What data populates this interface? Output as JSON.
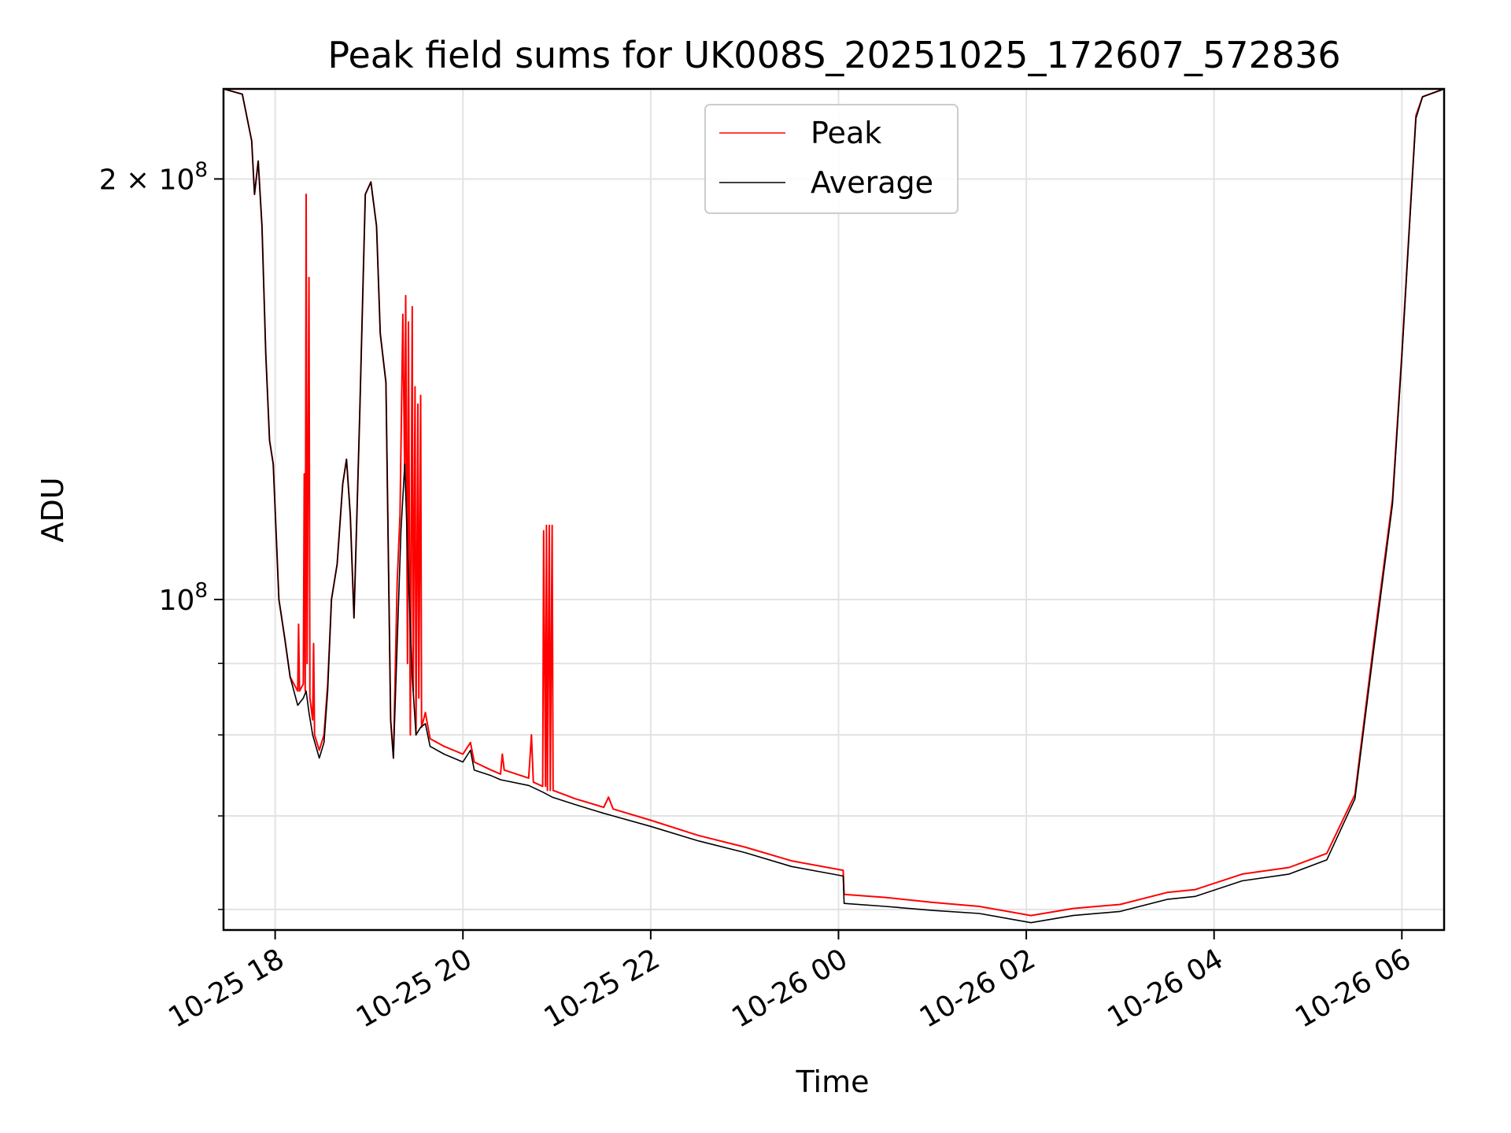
{
  "chart_data": {
    "type": "line",
    "title": "Peak field sums for UK008S_20251025_172607_572836",
    "xlabel": "Time",
    "ylabel": "ADU",
    "yscale": "log",
    "xlim_hours": [
      -0.55,
      12.45
    ],
    "ylim": [
      58000000,
      232000000
    ],
    "grid": true,
    "legend_position": "upper center",
    "x_ticks": [
      {
        "hours": 0,
        "label": "10-25 18"
      },
      {
        "hours": 2,
        "label": "10-25 20"
      },
      {
        "hours": 4,
        "label": "10-25 22"
      },
      {
        "hours": 6,
        "label": "10-26 00"
      },
      {
        "hours": 8,
        "label": "10-26 02"
      },
      {
        "hours": 10,
        "label": "10-26 04"
      },
      {
        "hours": 12,
        "label": "10-26 06"
      }
    ],
    "y_major_ticks": [
      {
        "value": 100000000,
        "base": "10",
        "exp": "8",
        "mult": ""
      },
      {
        "value": 200000000,
        "base": "10",
        "exp": "8",
        "mult": "2 × "
      }
    ],
    "y_minor_ticks": [
      60000000,
      70000000,
      80000000,
      90000000
    ],
    "series": [
      {
        "name": "Peak",
        "color": "#ff0000",
        "points": [
          [
            -0.55,
            232000000
          ],
          [
            -0.35,
            230000000
          ],
          [
            -0.25,
            213000000
          ],
          [
            -0.22,
            195000000
          ],
          [
            -0.18,
            206000000
          ],
          [
            -0.14,
            185000000
          ],
          [
            -0.1,
            150000000
          ],
          [
            -0.06,
            130000000
          ],
          [
            -0.02,
            125000000
          ],
          [
            0.04,
            100000000
          ],
          [
            0.1,
            94000000
          ],
          [
            0.16,
            88000000
          ],
          [
            0.24,
            86000000
          ],
          [
            0.25,
            96000000
          ],
          [
            0.26,
            86000000
          ],
          [
            0.3,
            87000000
          ],
          [
            0.31,
            123000000
          ],
          [
            0.32,
            86000000
          ],
          [
            0.33,
            195000000
          ],
          [
            0.34,
            90000000
          ],
          [
            0.36,
            170000000
          ],
          [
            0.37,
            85000000
          ],
          [
            0.4,
            82000000
          ],
          [
            0.41,
            93000000
          ],
          [
            0.42,
            80000000
          ],
          [
            0.47,
            78000000
          ],
          [
            0.52,
            80000000
          ],
          [
            0.56,
            87000000
          ],
          [
            0.6,
            100000000
          ],
          [
            0.66,
            106000000
          ],
          [
            0.72,
            121000000
          ],
          [
            0.76,
            126000000
          ],
          [
            0.8,
            115000000
          ],
          [
            0.84,
            97000000
          ],
          [
            0.9,
            135000000
          ],
          [
            0.96,
            195000000
          ],
          [
            1.02,
            199000000
          ],
          [
            1.08,
            185000000
          ],
          [
            1.12,
            155000000
          ],
          [
            1.18,
            143000000
          ],
          [
            1.23,
            82000000
          ],
          [
            1.26,
            77000000
          ],
          [
            1.3,
            103000000
          ],
          [
            1.33,
            115000000
          ],
          [
            1.36,
            160000000
          ],
          [
            1.38,
            122000000
          ],
          [
            1.39,
            165000000
          ],
          [
            1.41,
            90000000
          ],
          [
            1.42,
            158000000
          ],
          [
            1.44,
            80000000
          ],
          [
            1.46,
            162000000
          ],
          [
            1.47,
            86000000
          ],
          [
            1.49,
            142000000
          ],
          [
            1.5,
            80000000
          ],
          [
            1.52,
            138000000
          ],
          [
            1.53,
            85000000
          ],
          [
            1.55,
            140000000
          ],
          [
            1.56,
            81000000
          ],
          [
            1.6,
            83000000
          ],
          [
            1.65,
            79500000
          ],
          [
            1.8,
            78500000
          ],
          [
            2.0,
            77500000
          ],
          [
            2.08,
            79000000
          ],
          [
            2.12,
            76500000
          ],
          [
            2.3,
            75500000
          ],
          [
            2.4,
            75000000
          ],
          [
            2.42,
            77500000
          ],
          [
            2.44,
            75500000
          ],
          [
            2.7,
            74500000
          ],
          [
            2.73,
            80000000
          ],
          [
            2.75,
            74000000
          ],
          [
            2.85,
            73500000
          ],
          [
            2.86,
            112000000
          ],
          [
            2.88,
            73500000
          ],
          [
            2.89,
            113000000
          ],
          [
            2.9,
            73000000
          ],
          [
            2.92,
            113000000
          ],
          [
            2.93,
            73000000
          ],
          [
            2.95,
            113000000
          ],
          [
            2.96,
            73000000
          ],
          [
            3.2,
            72000000
          ],
          [
            3.5,
            71000000
          ],
          [
            3.55,
            72200000
          ],
          [
            3.6,
            70800000
          ],
          [
            4.0,
            69500000
          ],
          [
            4.5,
            67800000
          ],
          [
            5.0,
            66500000
          ],
          [
            5.5,
            65000000
          ],
          [
            6.05,
            64000000
          ],
          [
            6.06,
            61500000
          ],
          [
            6.5,
            61200000
          ],
          [
            7.0,
            60700000
          ],
          [
            7.5,
            60300000
          ],
          [
            8.05,
            59400000
          ],
          [
            8.5,
            60100000
          ],
          [
            9.0,
            60500000
          ],
          [
            9.5,
            61700000
          ],
          [
            9.8,
            62000000
          ],
          [
            10.3,
            63600000
          ],
          [
            10.8,
            64300000
          ],
          [
            11.2,
            65800000
          ],
          [
            11.5,
            72500000
          ],
          [
            11.7,
            93000000
          ],
          [
            11.9,
            118000000
          ],
          [
            12.0,
            150000000
          ],
          [
            12.1,
            195000000
          ],
          [
            12.15,
            222000000
          ],
          [
            12.22,
            229000000
          ],
          [
            12.45,
            232000000
          ]
        ]
      },
      {
        "name": "Average",
        "color": "#000000",
        "points": [
          [
            -0.55,
            232000000
          ],
          [
            -0.35,
            230000000
          ],
          [
            -0.25,
            213000000
          ],
          [
            -0.22,
            195000000
          ],
          [
            -0.18,
            206000000
          ],
          [
            -0.14,
            185000000
          ],
          [
            -0.1,
            150000000
          ],
          [
            -0.06,
            130000000
          ],
          [
            -0.02,
            125000000
          ],
          [
            0.04,
            100000000
          ],
          [
            0.1,
            94000000
          ],
          [
            0.16,
            88000000
          ],
          [
            0.24,
            84000000
          ],
          [
            0.3,
            85000000
          ],
          [
            0.33,
            86000000
          ],
          [
            0.36,
            83000000
          ],
          [
            0.4,
            80000000
          ],
          [
            0.47,
            77000000
          ],
          [
            0.52,
            79000000
          ],
          [
            0.56,
            86000000
          ],
          [
            0.6,
            100000000
          ],
          [
            0.66,
            106000000
          ],
          [
            0.72,
            121000000
          ],
          [
            0.76,
            126000000
          ],
          [
            0.8,
            115000000
          ],
          [
            0.84,
            97000000
          ],
          [
            0.9,
            135000000
          ],
          [
            0.96,
            195000000
          ],
          [
            1.02,
            199000000
          ],
          [
            1.08,
            185000000
          ],
          [
            1.12,
            155000000
          ],
          [
            1.18,
            143000000
          ],
          [
            1.23,
            82000000
          ],
          [
            1.26,
            77000000
          ],
          [
            1.3,
            93000000
          ],
          [
            1.34,
            112000000
          ],
          [
            1.38,
            125000000
          ],
          [
            1.42,
            104000000
          ],
          [
            1.46,
            88000000
          ],
          [
            1.5,
            80000000
          ],
          [
            1.55,
            81000000
          ],
          [
            1.6,
            81500000
          ],
          [
            1.65,
            78500000
          ],
          [
            1.8,
            77500000
          ],
          [
            2.0,
            76500000
          ],
          [
            2.08,
            78000000
          ],
          [
            2.12,
            75500000
          ],
          [
            2.3,
            74800000
          ],
          [
            2.4,
            74300000
          ],
          [
            2.7,
            73600000
          ],
          [
            2.85,
            72800000
          ],
          [
            2.95,
            72200000
          ],
          [
            3.2,
            71300000
          ],
          [
            3.5,
            70300000
          ],
          [
            3.6,
            70000000
          ],
          [
            4.0,
            68800000
          ],
          [
            4.5,
            67200000
          ],
          [
            5.0,
            65900000
          ],
          [
            5.5,
            64400000
          ],
          [
            6.05,
            63400000
          ],
          [
            6.06,
            60600000
          ],
          [
            6.5,
            60300000
          ],
          [
            7.0,
            59900000
          ],
          [
            7.5,
            59600000
          ],
          [
            8.05,
            58700000
          ],
          [
            8.5,
            59400000
          ],
          [
            9.0,
            59800000
          ],
          [
            9.5,
            61000000
          ],
          [
            9.8,
            61300000
          ],
          [
            10.3,
            62900000
          ],
          [
            10.8,
            63600000
          ],
          [
            11.2,
            65100000
          ],
          [
            11.5,
            72000000
          ],
          [
            11.7,
            92000000
          ],
          [
            11.9,
            117000000
          ],
          [
            12.0,
            149000000
          ],
          [
            12.1,
            194000000
          ],
          [
            12.15,
            221000000
          ],
          [
            12.22,
            229000000
          ],
          [
            12.45,
            232000000
          ]
        ]
      }
    ]
  }
}
